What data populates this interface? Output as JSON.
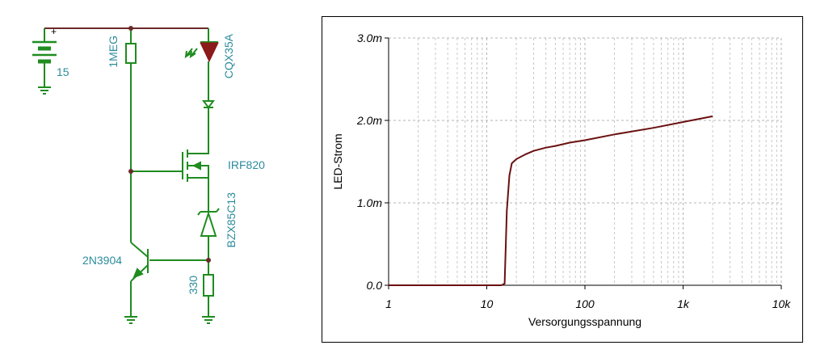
{
  "schematic": {
    "battery_value": "15",
    "resistor_top_label": "1MEG",
    "led_label": "CQX35A",
    "mosfet_label": "IRF820",
    "zener_label": "BZX85C13",
    "transistor_label": "2N3904",
    "resistor_bottom_label": "330",
    "colors": {
      "wire": "#6b2a2a",
      "component": "#1f8c1f",
      "label": "#2c8c9c",
      "led_fill": "#8b1a1a"
    }
  },
  "chart_data": {
    "type": "line",
    "title": "",
    "xlabel": "Versorgungsspannung",
    "ylabel": "LED-Strom",
    "x_scale": "log",
    "xlim": [
      1,
      10000
    ],
    "ylim": [
      0,
      0.003
    ],
    "x_ticks": [
      1,
      10,
      100,
      1000,
      10000
    ],
    "x_tick_labels": [
      "1",
      "10",
      "100",
      "1k",
      "10k"
    ],
    "y_ticks": [
      0,
      0.001,
      0.002,
      0.003
    ],
    "y_tick_labels": [
      "0.0",
      "1.0m",
      "2.0m",
      "3.0m"
    ],
    "grid": true,
    "series": [
      {
        "color": "#6b1010",
        "x": [
          1,
          2,
          5,
          10,
          14,
          15.2,
          16,
          17,
          18,
          20,
          25,
          30,
          40,
          50,
          70,
          100,
          200,
          500,
          1000,
          2000
        ],
        "y": [
          0,
          0,
          0,
          0,
          0,
          2e-05,
          0.0009,
          0.00133,
          0.00148,
          0.00153,
          0.00159,
          0.00163,
          0.00167,
          0.00169,
          0.00173,
          0.00176,
          0.00183,
          0.00191,
          0.00198,
          0.00205
        ]
      }
    ]
  }
}
